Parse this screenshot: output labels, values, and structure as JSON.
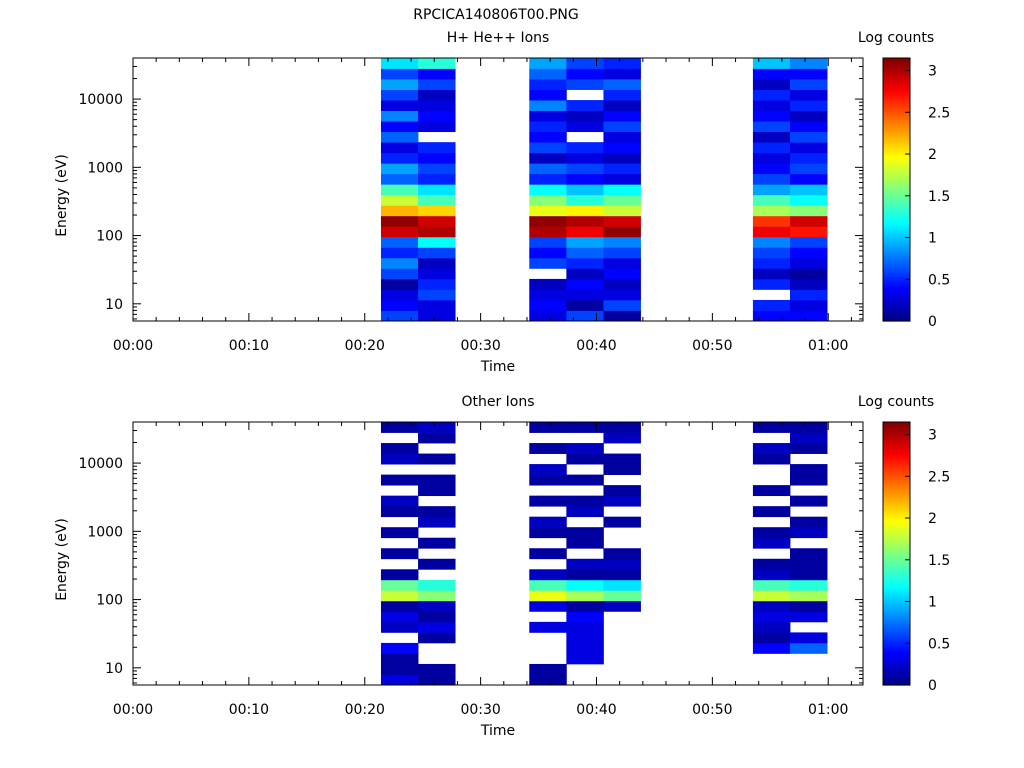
{
  "figure_title": "RPCICA140806T00.PNG",
  "chart_data": [
    {
      "type": "heatmap",
      "title": "H+ He++ Ions",
      "xlabel": "Time",
      "ylabel": "Energy (eV)",
      "colorbar_label": "Log counts",
      "x_range_minutes": [
        0,
        63
      ],
      "y_range_ev": [
        5.6,
        40000
      ],
      "y_scale": "log",
      "x_ticks": [
        {
          "v": 0,
          "label": "00:00"
        },
        {
          "v": 10,
          "label": "00:10"
        },
        {
          "v": 20,
          "label": "00:20"
        },
        {
          "v": 30,
          "label": "00:30"
        },
        {
          "v": 40,
          "label": "00:40"
        },
        {
          "v": 50,
          "label": "00:50"
        },
        {
          "v": 60,
          "label": "01:00"
        }
      ],
      "y_ticks": [
        {
          "v": 10,
          "label": "10"
        },
        {
          "v": 100,
          "label": "100"
        },
        {
          "v": 1000,
          "label": "1000"
        },
        {
          "v": 10000,
          "label": "10000"
        }
      ],
      "color_range": [
        0,
        3.15
      ],
      "colorbar_ticks": [
        {
          "v": 0,
          "label": "0"
        },
        {
          "v": 0.5,
          "label": "0.5"
        },
        {
          "v": 1,
          "label": "1"
        },
        {
          "v": 1.5,
          "label": "1.5"
        },
        {
          "v": 2,
          "label": "2"
        },
        {
          "v": 2.5,
          "label": "2.5"
        },
        {
          "v": 3,
          "label": "3"
        }
      ],
      "columns": [
        {
          "x0": 21.4,
          "x1": 24.6,
          "values": [
            0.6,
            0.4,
            0.3,
            0.1,
            0.6,
            0.8,
            0.5,
            0.7,
            2.9,
            3.1,
            2.2,
            1.8,
            1.4,
            0.7,
            0.9,
            0.5,
            0.3,
            0.7,
            0.4,
            0.8,
            0.3,
            0.6,
            0.9,
            0.6,
            1.1
          ]
        },
        {
          "x0": 24.6,
          "x1": 27.8,
          "values": [
            0.3,
            0.3,
            0.6,
            0.5,
            0.3,
            0.2,
            0.6,
            1.2,
            3.0,
            2.9,
            2.1,
            1.4,
            1.1,
            0.5,
            0.6,
            0.4,
            0.5,
            null,
            0.3,
            0.4,
            0.3,
            0.2,
            0.6,
            0.4,
            1.3
          ]
        },
        {
          "x0": 34.2,
          "x1": 37.4,
          "values": [
            0.3,
            0.4,
            0.3,
            0.2,
            null,
            0.6,
            0.4,
            0.6,
            3.0,
            3.1,
            1.9,
            1.6,
            1.2,
            0.5,
            0.7,
            0.2,
            0.6,
            0.4,
            0.5,
            0.3,
            0.8,
            0.4,
            0.5,
            0.7,
            0.9
          ]
        },
        {
          "x0": 37.4,
          "x1": 40.6,
          "values": [
            0.6,
            0.1,
            0.3,
            0.4,
            0.2,
            0.5,
            0.7,
            0.9,
            2.8,
            3.0,
            2.0,
            1.3,
            1.0,
            0.4,
            0.6,
            0.3,
            0.5,
            null,
            0.3,
            0.2,
            0.5,
            null,
            0.6,
            0.4,
            0.6
          ]
        },
        {
          "x0": 40.6,
          "x1": 43.8,
          "values": [
            0.1,
            0.6,
            0.3,
            0.2,
            0.4,
            0.3,
            0.6,
            0.8,
            3.1,
            2.9,
            1.8,
            1.5,
            1.2,
            0.3,
            0.5,
            0.2,
            0.4,
            0.3,
            0.6,
            0.4,
            0.2,
            0.5,
            0.7,
            0.3,
            0.5
          ]
        },
        {
          "x0": 53.5,
          "x1": 56.7,
          "values": [
            0.4,
            0.5,
            null,
            0.5,
            0.2,
            0.5,
            0.6,
            0.8,
            2.8,
            2.6,
            1.7,
            1.4,
            0.9,
            0.6,
            0.4,
            0.3,
            0.5,
            0.2,
            0.6,
            0.4,
            0.3,
            0.5,
            0.2,
            0.4,
            1.0
          ]
        },
        {
          "x0": 56.7,
          "x1": 59.9,
          "values": [
            0.4,
            0.3,
            0.5,
            0.2,
            0.1,
            0.3,
            0.4,
            0.6,
            2.7,
            2.9,
            1.6,
            1.2,
            1.0,
            0.4,
            0.6,
            0.5,
            0.3,
            0.6,
            0.4,
            0.2,
            0.5,
            0.3,
            0.6,
            0.4,
            0.8
          ]
        }
      ]
    },
    {
      "type": "heatmap",
      "title": "Other Ions",
      "xlabel": "Time",
      "ylabel": "Energy (eV)",
      "colorbar_label": "Log counts",
      "x_range_minutes": [
        0,
        63
      ],
      "y_range_ev": [
        5.6,
        40000
      ],
      "y_scale": "log",
      "x_ticks": [
        {
          "v": 0,
          "label": "00:00"
        },
        {
          "v": 10,
          "label": "00:10"
        },
        {
          "v": 20,
          "label": "00:20"
        },
        {
          "v": 30,
          "label": "00:30"
        },
        {
          "v": 40,
          "label": "00:40"
        },
        {
          "v": 50,
          "label": "00:50"
        },
        {
          "v": 60,
          "label": "01:00"
        }
      ],
      "y_ticks": [
        {
          "v": 10,
          "label": "10"
        },
        {
          "v": 100,
          "label": "100"
        },
        {
          "v": 1000,
          "label": "1000"
        },
        {
          "v": 10000,
          "label": "10000"
        }
      ],
      "color_range": [
        0,
        3.15
      ],
      "colorbar_ticks": [
        {
          "v": 0,
          "label": "0"
        },
        {
          "v": 0.5,
          "label": "0.5"
        },
        {
          "v": 1,
          "label": "1"
        },
        {
          "v": 1.5,
          "label": "1.5"
        },
        {
          "v": 2,
          "label": "2"
        },
        {
          "v": 2.5,
          "label": "2.5"
        },
        {
          "v": 3,
          "label": "3"
        }
      ],
      "columns": [
        {
          "x0": 21.4,
          "x1": 24.6,
          "values": [
            0.3,
            0.1,
            0.1,
            0.4,
            null,
            0.2,
            0.3,
            0.1,
            1.8,
            1.5,
            0.1,
            null,
            0.1,
            null,
            0.1,
            null,
            0.1,
            0.2,
            null,
            0.1,
            null,
            0.2,
            0.1,
            null,
            0.1
          ]
        },
        {
          "x0": 24.6,
          "x1": 27.8,
          "values": [
            0.1,
            0.1,
            null,
            null,
            0.1,
            0.3,
            0.1,
            0.2,
            1.6,
            1.3,
            null,
            0.1,
            null,
            0.1,
            null,
            0.2,
            0.1,
            null,
            0.1,
            0.1,
            null,
            0.1,
            null,
            0.1,
            0.2
          ]
        },
        {
          "x0": 34.2,
          "x1": 37.4,
          "values": [
            0.1,
            0.1,
            null,
            null,
            null,
            0.3,
            null,
            0.3,
            1.9,
            1.4,
            0.2,
            null,
            0.1,
            null,
            0.1,
            0.2,
            null,
            0.1,
            null,
            0.1,
            0.2,
            null,
            0.1,
            null,
            0.1
          ]
        },
        {
          "x0": 37.4,
          "x1": 40.6,
          "values": [
            null,
            null,
            0.3,
            0.3,
            0.3,
            0.3,
            0.4,
            0.1,
            1.7,
            1.2,
            0.1,
            0.2,
            null,
            0.1,
            0.1,
            null,
            0.2,
            0.1,
            null,
            0.1,
            null,
            0.1,
            0.2,
            null,
            0.1
          ]
        },
        {
          "x0": 40.6,
          "x1": 43.8,
          "values": [
            null,
            null,
            null,
            null,
            null,
            null,
            null,
            0.2,
            1.5,
            1.1,
            0.1,
            0.2,
            0.1,
            null,
            null,
            0.1,
            null,
            0.2,
            0.1,
            null,
            0.1,
            0.1,
            null,
            0.2,
            0.1
          ]
        },
        {
          "x0": 53.5,
          "x1": 56.7,
          "values": [
            null,
            null,
            null,
            0.4,
            0.1,
            0.2,
            0.3,
            0.2,
            1.8,
            1.4,
            0.2,
            0.1,
            null,
            0.2,
            0.1,
            null,
            0.1,
            null,
            0.1,
            null,
            null,
            0.1,
            0.2,
            null,
            0.1
          ]
        },
        {
          "x0": 56.7,
          "x1": 59.9,
          "values": [
            null,
            null,
            null,
            0.7,
            0.3,
            null,
            0.3,
            0.1,
            1.7,
            1.3,
            0.1,
            0.1,
            0.1,
            null,
            0.2,
            0.1,
            null,
            0.1,
            null,
            0.1,
            0.1,
            null,
            0.1,
            0.2,
            0.1
          ]
        }
      ]
    }
  ]
}
